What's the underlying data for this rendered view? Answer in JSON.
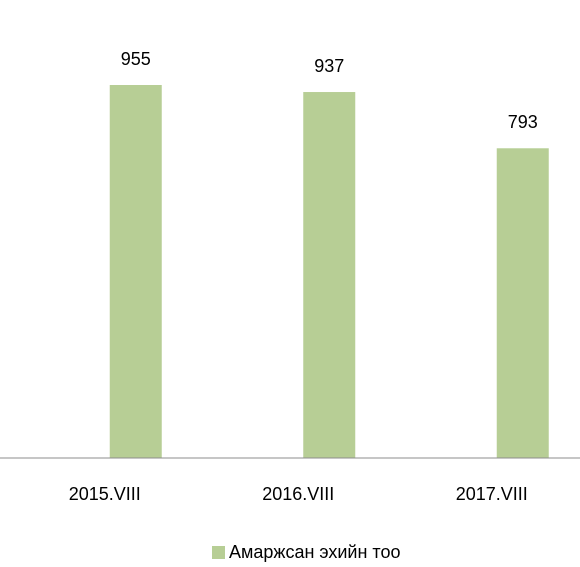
{
  "chart_data": {
    "type": "bar",
    "categories": [
      "2015.VIII",
      "2016.VIII",
      "2017.VIII"
    ],
    "series": [
      {
        "name": "Амаржсан эхийн тоо",
        "color": "#b7ce95",
        "values": [
          955,
          937,
          793
        ]
      }
    ]
  }
}
